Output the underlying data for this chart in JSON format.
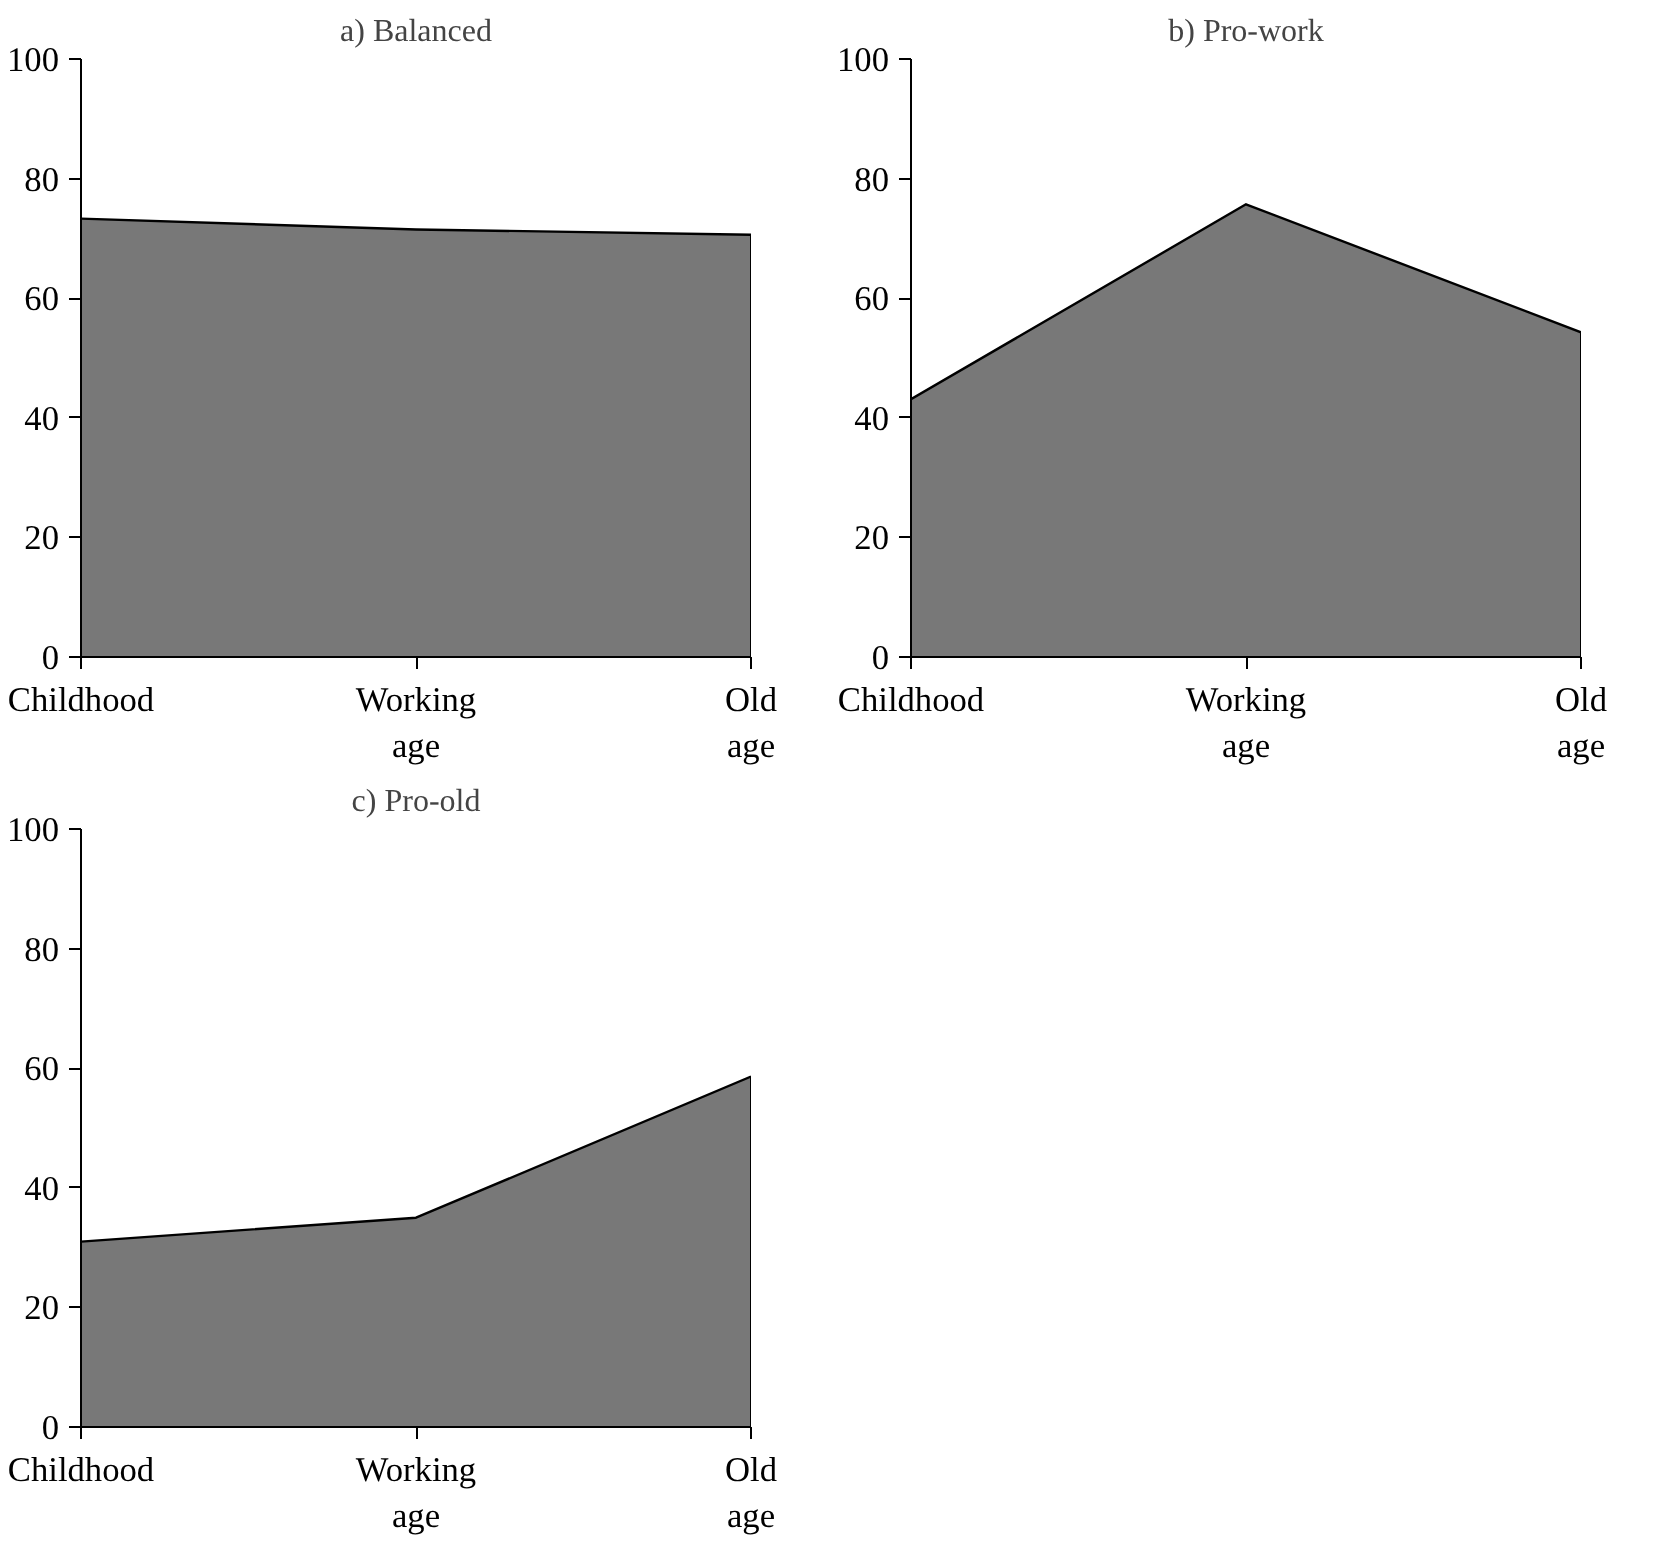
{
  "chart_data": [
    {
      "type": "area",
      "title": "a) Balanced",
      "categories": [
        "Childhood",
        "Working age",
        "Old age"
      ],
      "values": [
        73.3,
        71.5,
        70.6
      ],
      "color": "#787878",
      "ylim": [
        0,
        100
      ],
      "yticks": [
        0,
        20,
        40,
        60,
        80,
        100
      ],
      "grid": false
    },
    {
      "type": "area",
      "title": "b) Pro-work",
      "categories": [
        "Childhood",
        "Working age",
        "Old age"
      ],
      "values": [
        43.1,
        75.7,
        54.3
      ],
      "color": "#787878",
      "ylim": [
        0,
        100
      ],
      "yticks": [
        0,
        20,
        40,
        60,
        80,
        100
      ],
      "grid": false
    },
    {
      "type": "area",
      "title": "c) Pro-old",
      "categories": [
        "Childhood",
        "Working age",
        "Old age"
      ],
      "values": [
        31.0,
        35.0,
        58.6
      ],
      "color": "#787878",
      "ylim": [
        0,
        100
      ],
      "yticks": [
        0,
        20,
        40,
        60,
        80,
        100
      ],
      "grid": false
    }
  ]
}
